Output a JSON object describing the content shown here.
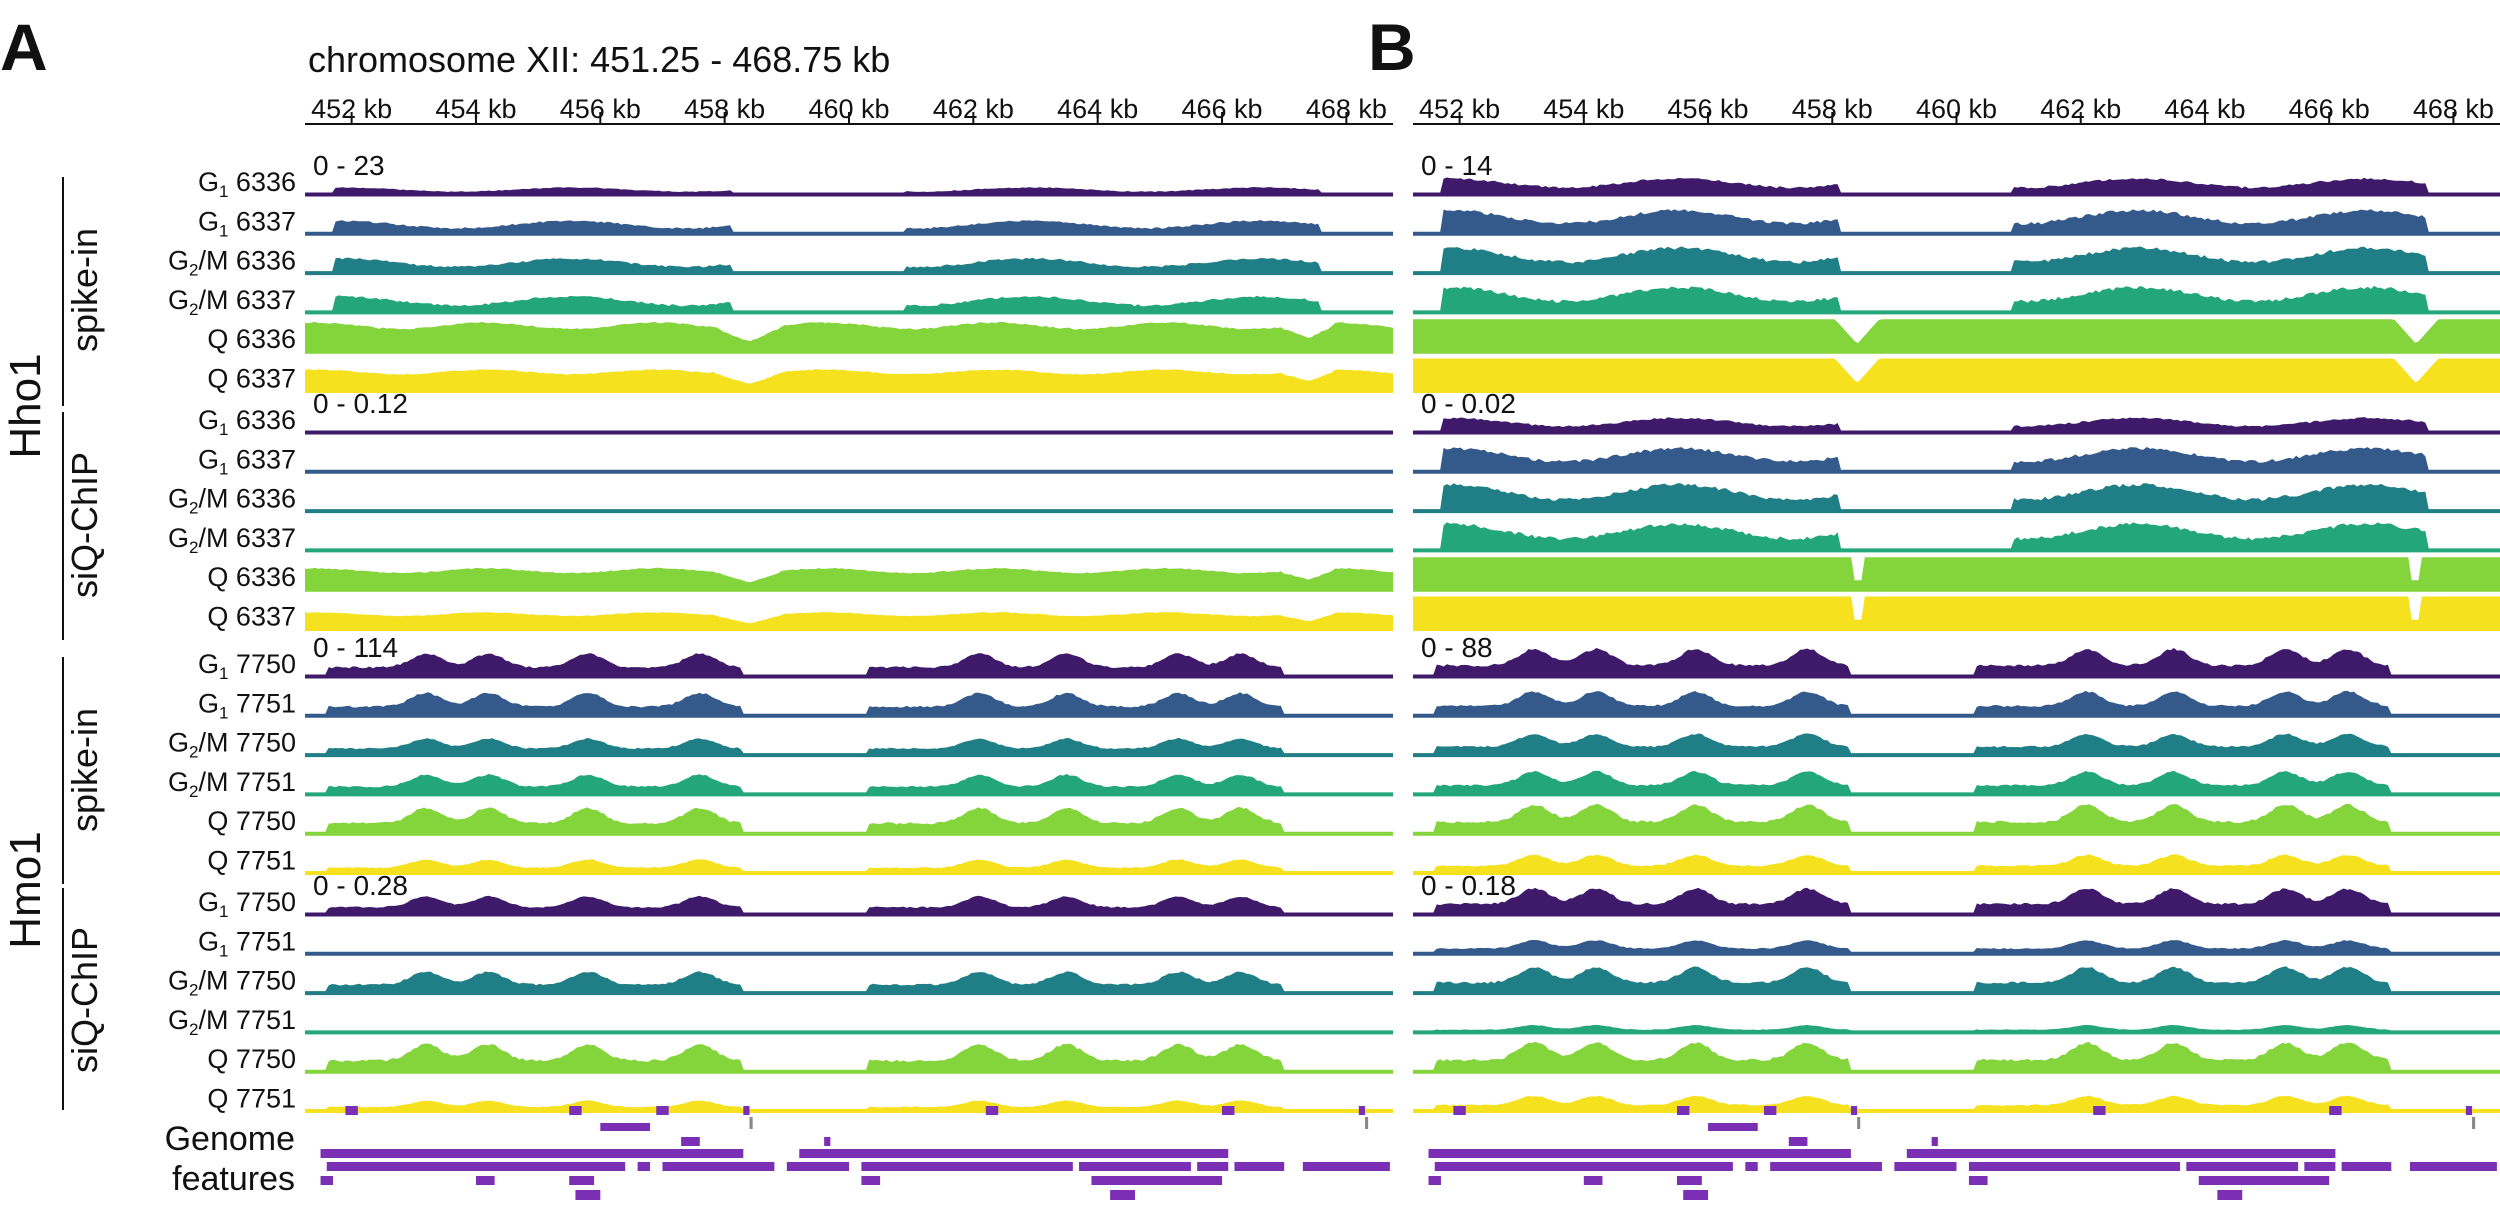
{
  "figure": {
    "panel_a_letter": "A",
    "panel_b_letter": "B",
    "region_title": "chromosome XII: 451.25 - 468.75 kb",
    "genome_features_line1": "Genome",
    "genome_features_line2": "features"
  },
  "groups": [
    {
      "protein": "Hho1",
      "subgroups": [
        "spike-in",
        "siQ-ChIP"
      ]
    },
    {
      "protein": "Hmo1",
      "subgroups": [
        "spike-in",
        "siQ-ChIP"
      ]
    }
  ],
  "colors": {
    "G1 dark": "#3f1a6b",
    "G1 blue": "#345a8c",
    "G2M teal": "#207f86",
    "G2M green": "#22a67a",
    "Q lime": "#84d43c",
    "Q yellow": "#f6e11e",
    "features": "#7b2fb4"
  },
  "chart_data": [
    {
      "panel": "A",
      "type": "area",
      "title": "chromosome XII: 451.25 - 468.75 kb",
      "xlabel": "",
      "ylabel": "",
      "xlim": [
        451.25,
        468.75
      ],
      "x_tick_labels": [
        "452 kb",
        "454 kb",
        "456 kb",
        "458 kb",
        "460 kb",
        "462 kb",
        "464 kb",
        "466 kb",
        "468 kb"
      ],
      "x_ticks": [
        452,
        454,
        456,
        458,
        460,
        462,
        464,
        466,
        468
      ],
      "track_groups": [
        {
          "range_label": "0 - 23",
          "ylim": [
            0,
            23
          ],
          "protein": "Hho1",
          "method": "spike-in",
          "tracks": [
            {
              "label": "G1 6336",
              "phase": "G",
              "sub": "1",
              "name": " 6336",
              "color": "#3f1a6b",
              "level": 0.25,
              "profile": "hho"
            },
            {
              "label": "G1 6337",
              "phase": "G",
              "sub": "1",
              "name": " 6337",
              "color": "#345a8c",
              "level": 0.45,
              "profile": "hho"
            },
            {
              "label": "G2/M 6336",
              "phase": "G",
              "sub": "2",
              "name": "/M 6336",
              "color": "#207f86",
              "level": 0.5,
              "profile": "hho"
            },
            {
              "label": "G2/M 6337",
              "phase": "G",
              "sub": "2",
              "name": "/M 6337",
              "color": "#22a67a",
              "level": 0.55,
              "profile": "hho"
            },
            {
              "label": "Q 6336",
              "phase": "Q",
              "sub": "",
              "name": " 6336",
              "color": "#84d43c",
              "level": 0.95,
              "profile": "q"
            },
            {
              "label": "Q 6337",
              "phase": "Q",
              "sub": "",
              "name": " 6337",
              "color": "#f6e11e",
              "level": 0.7,
              "profile": "q"
            }
          ]
        },
        {
          "range_label": "0 - 0.12",
          "ylim": [
            0,
            0.12
          ],
          "protein": "Hho1",
          "method": "siQ-ChIP",
          "tracks": [
            {
              "label": "G1 6336",
              "phase": "G",
              "sub": "1",
              "name": " 6336",
              "color": "#3f1a6b",
              "level": 0.03,
              "profile": "flat"
            },
            {
              "label": "G1 6337",
              "phase": "G",
              "sub": "1",
              "name": " 6337",
              "color": "#345a8c",
              "level": 0.04,
              "profile": "flat"
            },
            {
              "label": "G2/M 6336",
              "phase": "G",
              "sub": "2",
              "name": "/M 6336",
              "color": "#207f86",
              "level": 0.05,
              "profile": "flat"
            },
            {
              "label": "G2/M 6337",
              "phase": "G",
              "sub": "2",
              "name": "/M 6337",
              "color": "#22a67a",
              "level": 0.06,
              "profile": "flat"
            },
            {
              "label": "Q 6336",
              "phase": "Q",
              "sub": "",
              "name": " 6336",
              "color": "#84d43c",
              "level": 0.7,
              "profile": "q"
            },
            {
              "label": "Q 6337",
              "phase": "Q",
              "sub": "",
              "name": " 6337",
              "color": "#f6e11e",
              "level": 0.55,
              "profile": "q"
            }
          ]
        },
        {
          "range_label": "0 - 114",
          "ylim": [
            0,
            114
          ],
          "protein": "Hmo1",
          "method": "spike-in",
          "tracks": [
            {
              "label": "G1 7750",
              "phase": "G",
              "sub": "1",
              "name": " 7750",
              "color": "#3f1a6b",
              "level": 0.75,
              "profile": "hmo"
            },
            {
              "label": "G1 7751",
              "phase": "G",
              "sub": "1",
              "name": " 7751",
              "color": "#345a8c",
              "level": 0.75,
              "profile": "hmo"
            },
            {
              "label": "G2/M 7750",
              "phase": "G",
              "sub": "2",
              "name": "/M 7750",
              "color": "#207f86",
              "level": 0.55,
              "profile": "hmo"
            },
            {
              "label": "G2/M 7751",
              "phase": "G",
              "sub": "2",
              "name": "/M 7751",
              "color": "#22a67a",
              "level": 0.65,
              "profile": "hmo"
            },
            {
              "label": "Q 7750",
              "phase": "Q",
              "sub": "",
              "name": " 7750",
              "color": "#84d43c",
              "level": 0.85,
              "profile": "hmo"
            },
            {
              "label": "Q 7751",
              "phase": "Q",
              "sub": "",
              "name": " 7751",
              "color": "#f6e11e",
              "level": 0.45,
              "profile": "hmo"
            }
          ]
        },
        {
          "range_label": "0 - 0.28",
          "ylim": [
            0,
            0.28
          ],
          "protein": "Hmo1",
          "method": "siQ-ChIP",
          "tracks": [
            {
              "label": "G1 7750",
              "phase": "G",
              "sub": "1",
              "name": " 7750",
              "color": "#3f1a6b",
              "level": 0.6,
              "profile": "hmo"
            },
            {
              "label": "G1 7751",
              "phase": "G",
              "sub": "1",
              "name": " 7751",
              "color": "#345a8c",
              "level": 0.06,
              "profile": "flat"
            },
            {
              "label": "G2/M 7750",
              "phase": "G",
              "sub": "2",
              "name": "/M 7750",
              "color": "#207f86",
              "level": 0.7,
              "profile": "hmo"
            },
            {
              "label": "G2/M 7751",
              "phase": "G",
              "sub": "2",
              "name": "/M 7751",
              "color": "#22a67a",
              "level": 0.07,
              "profile": "flat"
            },
            {
              "label": "Q 7750",
              "phase": "Q",
              "sub": "",
              "name": " 7750",
              "color": "#84d43c",
              "level": 0.9,
              "profile": "hmo"
            },
            {
              "label": "Q 7751",
              "phase": "Q",
              "sub": "",
              "name": " 7751",
              "color": "#f6e11e",
              "level": 0.35,
              "profile": "hmo"
            }
          ]
        }
      ]
    },
    {
      "panel": "B",
      "type": "area",
      "xlim": [
        451.25,
        468.75
      ],
      "x_tick_labels": [
        "452 kb",
        "454 kb",
        "456 kb",
        "458 kb",
        "460 kb",
        "462 kb",
        "464 kb",
        "466 kb",
        "468 kb"
      ],
      "x_ticks": [
        452,
        454,
        456,
        458,
        460,
        462,
        464,
        466,
        468
      ],
      "track_groups": [
        {
          "range_label": "0 - 14",
          "ylim": [
            0,
            14
          ],
          "protein": "Hho1",
          "method": "spike-in",
          "levels": [
            0.55,
            0.8,
            0.85,
            0.85,
            1.0,
            1.0
          ],
          "profiles": [
            "hho",
            "hho",
            "hho",
            "hho",
            "sat",
            "sat"
          ]
        },
        {
          "range_label": "0 - 0.02",
          "ylim": [
            0,
            0.02
          ],
          "protein": "Hho1",
          "method": "siQ-ChIP",
          "levels": [
            0.5,
            0.8,
            0.9,
            0.9,
            1.0,
            1.0
          ],
          "profiles": [
            "hho",
            "hho",
            "hho",
            "hho",
            "full",
            "full"
          ]
        },
        {
          "range_label": "0 - 88",
          "ylim": [
            0,
            88
          ],
          "protein": "Hmo1",
          "method": "spike-in",
          "levels": [
            0.9,
            0.8,
            0.7,
            0.75,
            0.95,
            0.6
          ],
          "profiles": [
            "hmo",
            "hmo",
            "hmo",
            "hmo",
            "hmo",
            "hmo"
          ]
        },
        {
          "range_label": "0 - 0.18",
          "ylim": [
            0,
            0.18
          ],
          "protein": "Hmo1",
          "method": "siQ-ChIP",
          "levels": [
            0.85,
            0.45,
            0.85,
            0.25,
            0.95,
            0.5
          ],
          "profiles": [
            "hmo",
            "hmo",
            "hmo",
            "hmo",
            "hmo",
            "hmo"
          ]
        }
      ]
    }
  ],
  "genome_features": {
    "row0": [
      [
        451.9,
        452.1
      ],
      [
        455.5,
        455.7
      ],
      [
        456.9,
        457.1
      ],
      [
        466.0,
        466.2
      ],
      [
        458.3,
        458.4
      ],
      [
        462.2,
        462.4
      ],
      [
        468.2,
        468.3
      ]
    ],
    "row1": [
      [
        458.4,
        458.45
      ],
      [
        468.3,
        468.35
      ]
    ],
    "row2": [
      [
        456.0,
        456.8
      ]
    ],
    "row3": [
      [
        457.3,
        457.6
      ],
      [
        459.6,
        459.7
      ]
    ],
    "row4": [
      [
        451.5,
        458.3
      ],
      [
        459.2,
        466.1
      ]
    ],
    "row5": [
      [
        451.6,
        456.4
      ],
      [
        456.6,
        456.8
      ],
      [
        457.0,
        458.8
      ],
      [
        459.0,
        460.0
      ],
      [
        460.2,
        463.6
      ],
      [
        463.7,
        465.5
      ],
      [
        465.6,
        466.1
      ],
      [
        466.2,
        467.0
      ],
      [
        467.3,
        468.7
      ]
    ],
    "row6": [
      [
        451.5,
        451.7
      ],
      [
        454.0,
        454.3
      ],
      [
        455.5,
        455.9
      ],
      [
        460.2,
        460.5
      ],
      [
        463.9,
        466.0
      ]
    ],
    "row7": [
      [
        455.6,
        456.0
      ],
      [
        464.2,
        464.6
      ]
    ]
  }
}
